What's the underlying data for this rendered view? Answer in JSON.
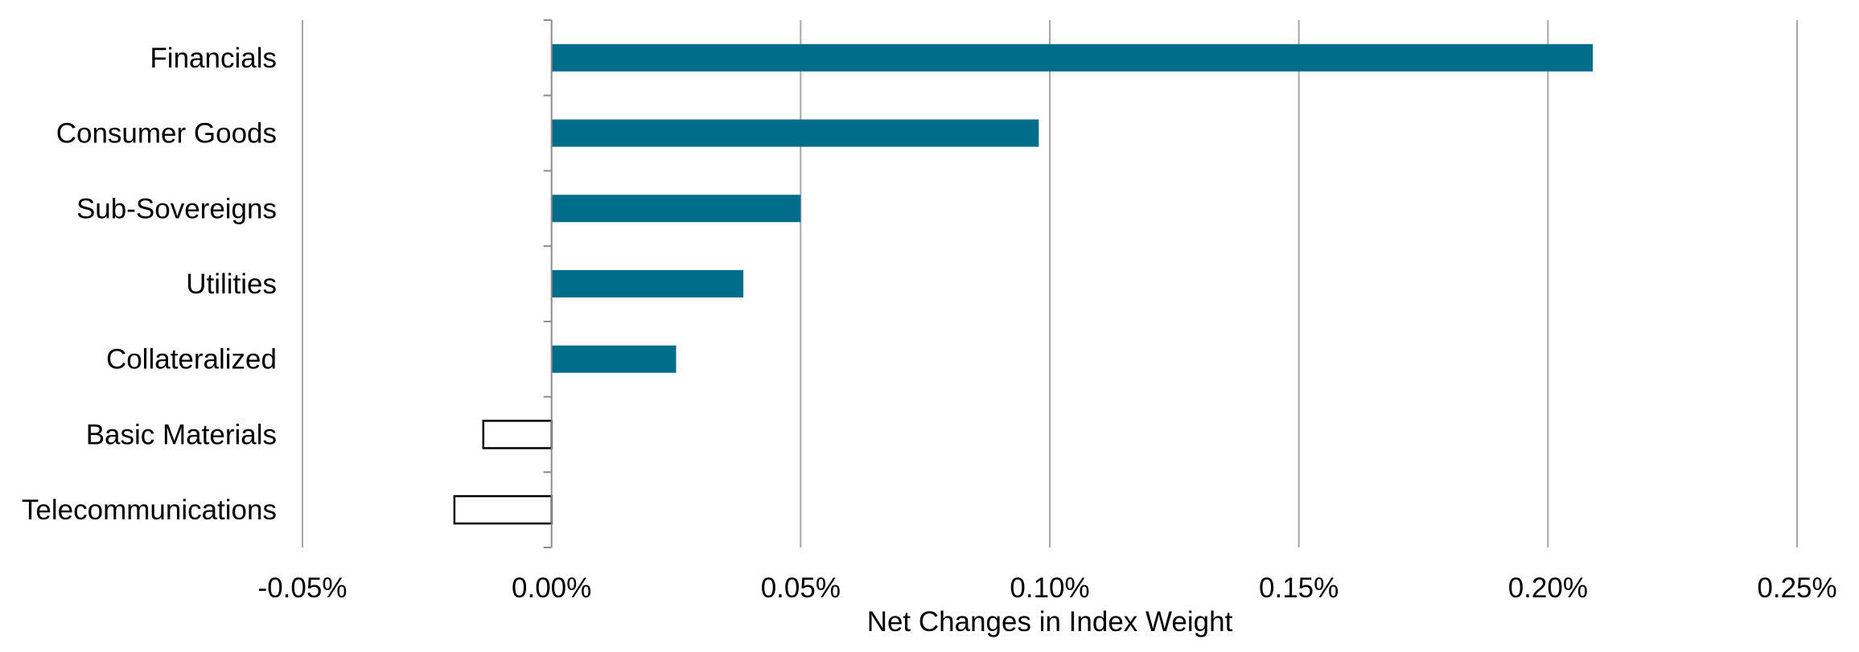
{
  "chart_data": {
    "type": "bar",
    "orientation": "horizontal",
    "title": "",
    "xlabel": "Net Changes in Index Weight",
    "ylabel": "",
    "categories": [
      "Financials",
      "Consumer Goods",
      "Sub-Sovereigns",
      "Utilities",
      "Collateralized",
      "Basic Materials",
      "Telecommunications"
    ],
    "values": [
      0.209,
      0.0978,
      0.05,
      0.0385,
      0.025,
      -0.0137,
      -0.0195
    ],
    "value_unit": "%",
    "xlim": [
      -0.05,
      0.25
    ],
    "xticks": [
      -0.05,
      0.0,
      0.05,
      0.1,
      0.15,
      0.2,
      0.25
    ],
    "xtick_labels": [
      "-0.05%",
      "0.00%",
      "0.05%",
      "0.10%",
      "0.15%",
      "0.20%",
      "0.25%"
    ],
    "grid": "vertical",
    "legend": "none",
    "colors": {
      "positive_fill": "#006E8A",
      "negative_fill": "#FFFFFF",
      "negative_stroke": "#000000",
      "grid": "#A6A6A6",
      "axis": "#8C8C8C"
    }
  }
}
